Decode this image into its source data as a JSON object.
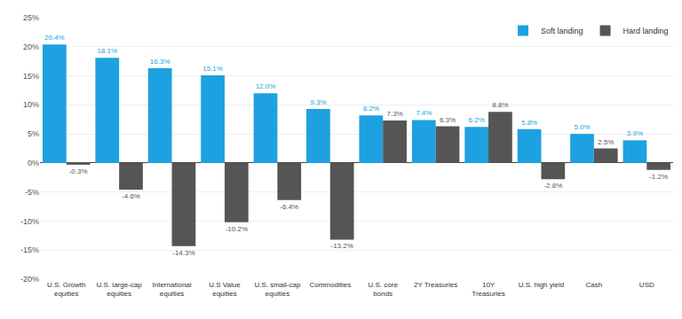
{
  "chart_data": {
    "type": "bar",
    "categories": [
      "U.S. Growth\nequities",
      "U.S. large-cap\nequities",
      "International\nequities",
      "U.S Value\nequities",
      "U.S. small-cap\nequities",
      "Commodities",
      "U.S. core\nbonds",
      "2Y Treasuries",
      "10Y\nTreasuries",
      "U.S. high yield",
      "Cash",
      "USD"
    ],
    "series": [
      {
        "name": "Soft landing",
        "color": "#1da1e0",
        "values": [
          20.4,
          18.1,
          16.3,
          15.1,
          12.0,
          9.3,
          8.2,
          7.4,
          6.2,
          5.8,
          5.0,
          3.9
        ],
        "value_labels": [
          "20.4%",
          "18.1%",
          "16.3%",
          "15.1%",
          "12.0%",
          "9.3%",
          "8.2%",
          "7.4%",
          "6.2%",
          "5.8%",
          "5.0%",
          "3.9%"
        ]
      },
      {
        "name": "Hard landing",
        "color": "#555555",
        "values": [
          -0.3,
          -4.6,
          -14.3,
          -10.2,
          -6.4,
          -13.2,
          7.3,
          6.3,
          8.8,
          -2.8,
          2.5,
          -1.2
        ],
        "value_labels": [
          "-0.3%",
          "-4.6%",
          "-14.3%",
          "-10.2%",
          "-6.4%",
          "-13.2%",
          "7.3%",
          "6.3%",
          "8.8%",
          "-2.8%",
          "2.5%",
          "-1.2%"
        ]
      }
    ],
    "ylim": [
      -20,
      25
    ],
    "yticks": [
      {
        "value": -20,
        "label": "-20%"
      },
      {
        "value": -15,
        "label": "-15%"
      },
      {
        "value": -10,
        "label": "-10%"
      },
      {
        "value": -5,
        "label": "-5%"
      },
      {
        "value": 0,
        "label": "0%"
      },
      {
        "value": 5,
        "label": "5%"
      },
      {
        "value": 10,
        "label": "10%"
      },
      {
        "value": 15,
        "label": "15%"
      },
      {
        "value": 20,
        "label": "20%"
      },
      {
        "value": 25,
        "label": "25%"
      }
    ],
    "grid": true,
    "legend": "upper right",
    "data_labels": true
  }
}
